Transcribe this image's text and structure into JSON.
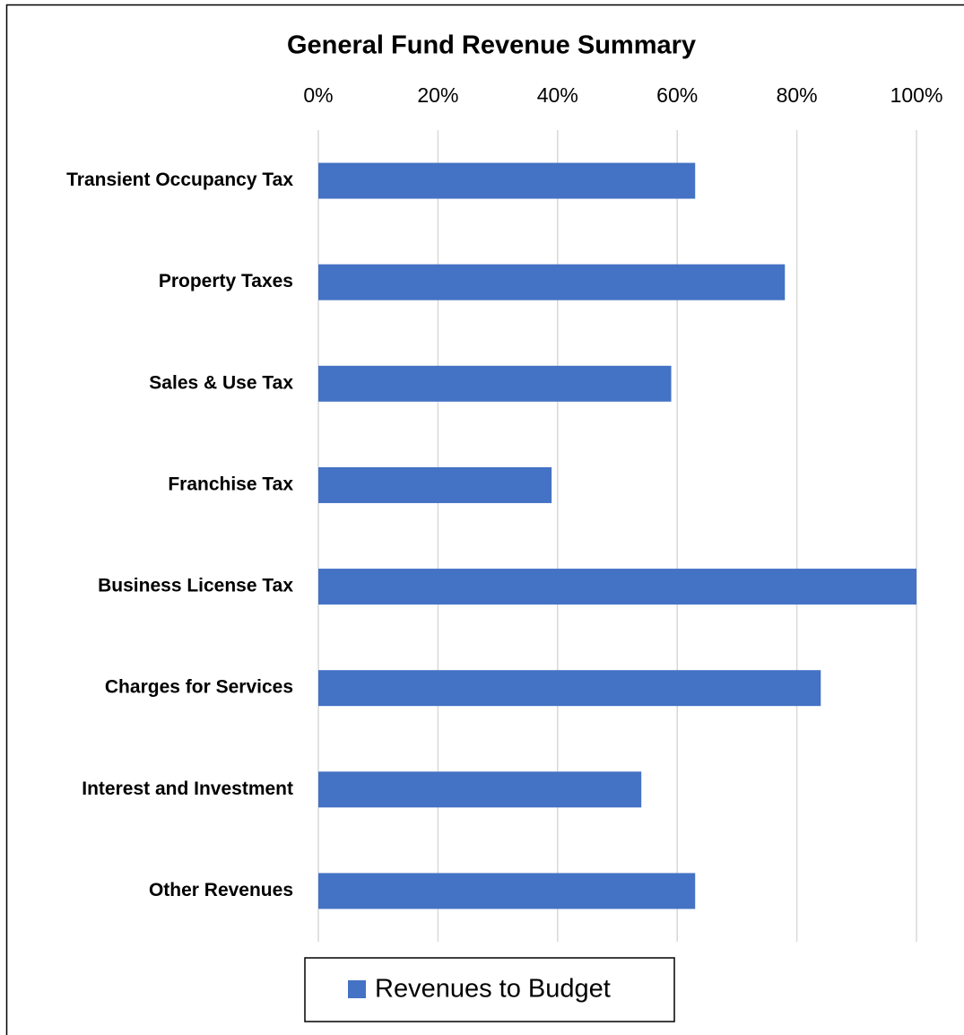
{
  "chart_data": {
    "type": "hbar",
    "title": "General Fund Revenue Summary",
    "categories": [
      "Transient Occupancy Tax",
      "Property Taxes",
      "Sales & Use Tax",
      "Franchise Tax",
      "Business License Tax",
      "Charges for Services",
      "Interest and Investment",
      "Other Revenues"
    ],
    "series": [
      {
        "name": "Revenues to Budget",
        "color": "#4472c4",
        "values": [
          63,
          78,
          59,
          39,
          100,
          84,
          54,
          63
        ]
      }
    ],
    "xlim": [
      0,
      100
    ],
    "xticks": [
      {
        "value": 0,
        "label": "0%"
      },
      {
        "value": 20,
        "label": "20%"
      },
      {
        "value": 40,
        "label": "40%"
      },
      {
        "value": 60,
        "label": "60%"
      },
      {
        "value": 80,
        "label": "80%"
      },
      {
        "value": 100,
        "label": "100%"
      }
    ],
    "grid": true,
    "legend": "bottom"
  }
}
